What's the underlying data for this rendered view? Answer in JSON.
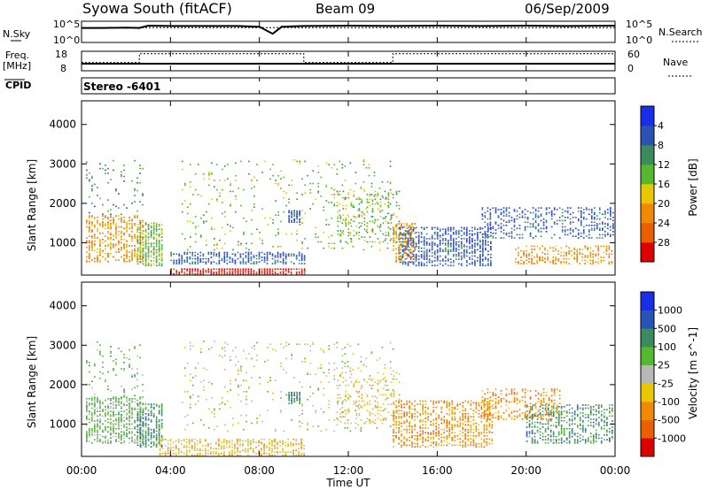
{
  "header": {
    "title": "Syowa South (fitACF)",
    "beam": "Beam 09",
    "date": "06/Sep/2009"
  },
  "top_panels": {
    "nsky": {
      "left_label": "N.Sky",
      "right_label": "N.Search",
      "left_top_tick": "10^5",
      "left_bottom_tick": "10^0",
      "right_top_tick": "10^5",
      "right_bottom_tick": "10^0"
    },
    "freq": {
      "left_label_line1": "Freq.",
      "left_label_line2": "[MHz]",
      "right_label": "Nave",
      "left_top_tick": "18",
      "left_bottom_tick": "8",
      "right_top_tick": "60",
      "right_bottom_tick": "0"
    },
    "cpid": {
      "label": "CPID",
      "value": "Stereo -6401"
    }
  },
  "panels": {
    "power": {
      "ylabel": "Slant Range [km]",
      "colorbar_label": "Power [dB]",
      "yticks": [
        "1000",
        "2000",
        "3000",
        "4000"
      ],
      "colorbar_ticks": [
        "4",
        "8",
        "12",
        "16",
        "20",
        "24",
        "28"
      ],
      "colorbar_colors": [
        "#1a2ee8",
        "#2a52b6",
        "#3d8a5e",
        "#56b830",
        "#e8c800",
        "#f08a00",
        "#e86000",
        "#dd0000"
      ]
    },
    "velocity": {
      "ylabel": "Slant Range [km]",
      "colorbar_label": "Velocity [m s^-1]",
      "yticks": [
        "1000",
        "2000",
        "3000",
        "4000"
      ],
      "colorbar_ticks": [
        "1000",
        "500",
        "100",
        "25",
        "-25",
        "-100",
        "-500",
        "-1000"
      ],
      "colorbar_colors": [
        "#1a2ee8",
        "#2a52b6",
        "#3d8a5e",
        "#56b830",
        "#b8b8b8",
        "#e8c800",
        "#f08a00",
        "#e86000",
        "#dd0000"
      ]
    }
  },
  "xaxis": {
    "label": "Time UT",
    "ticks": [
      "00:00",
      "04:00",
      "08:00",
      "12:00",
      "16:00",
      "20:00",
      "00:00"
    ]
  },
  "chart_data": [
    {
      "type": "line",
      "name": "nsky_nsearch",
      "x_range_hours": [
        0,
        24
      ],
      "series": [
        {
          "name": "N.Sky",
          "x": [
            0,
            1,
            2,
            2.6,
            3,
            4,
            6,
            7,
            8,
            8.6,
            9,
            10,
            12,
            14,
            16,
            18,
            20,
            22,
            24
          ],
          "y": [
            3.5,
            3.5,
            3.6,
            3.5,
            4.1,
            4.0,
            4.0,
            4.0,
            3.8,
            2.0,
            3.8,
            4.0,
            4.1,
            4.0,
            4.1,
            4.0,
            4.1,
            4.0,
            4.1
          ]
        },
        {
          "name": "N.Search",
          "x": [
            0,
            24
          ],
          "y": [
            3.6,
            3.6
          ]
        }
      ],
      "ylim": [
        0,
        5
      ]
    },
    {
      "type": "line",
      "name": "freq_nave",
      "x_range_hours": [
        0,
        24
      ],
      "series": [
        {
          "name": "Freq.",
          "x": [
            0,
            2.6,
            2.6,
            10,
            10,
            14,
            14,
            24
          ],
          "y": [
            11.5,
            11.5,
            11.5,
            11.5,
            11.5,
            11.5,
            11.5,
            11.5
          ]
        },
        {
          "name": "Nave",
          "x": [
            0,
            2.6,
            2.6,
            10,
            10,
            14,
            14,
            24
          ],
          "y": [
            25,
            25,
            55,
            55,
            25,
            25,
            55,
            55
          ]
        }
      ],
      "ylim": [
        8,
        18
      ]
    },
    {
      "type": "heatmap",
      "name": "power_rti",
      "x_range_hours": [
        0,
        24
      ],
      "ylim": [
        180,
        4600
      ],
      "zlim": [
        0,
        30
      ],
      "regions": [
        {
          "t0": 0.2,
          "t1": 2.8,
          "r0": 500,
          "r1": 1700,
          "z": 20,
          "density": 0.55
        },
        {
          "t0": 0.2,
          "t1": 2.8,
          "r0": 1700,
          "r1": 3100,
          "z": 10,
          "density": 0.1
        },
        {
          "t0": 2.5,
          "t1": 3.7,
          "r0": 400,
          "r1": 1500,
          "z": 14,
          "density": 0.7
        },
        {
          "t0": 4.0,
          "t1": 10.0,
          "r0": 190,
          "r1": 330,
          "z": 28,
          "density": 0.85
        },
        {
          "t0": 4.0,
          "t1": 10.0,
          "r0": 450,
          "r1": 750,
          "z": 5,
          "density": 0.55
        },
        {
          "t0": 4.5,
          "t1": 14.0,
          "r0": 800,
          "r1": 3100,
          "z": 12,
          "density": 0.08
        },
        {
          "t0": 9.3,
          "t1": 9.8,
          "r0": 1500,
          "r1": 1800,
          "z": 5,
          "density": 0.8
        },
        {
          "t0": 11.5,
          "t1": 14.3,
          "r0": 1000,
          "r1": 2300,
          "z": 14,
          "density": 0.25
        },
        {
          "t0": 14.0,
          "t1": 15.0,
          "r0": 500,
          "r1": 1500,
          "z": 20,
          "density": 0.6
        },
        {
          "t0": 14.3,
          "t1": 18.5,
          "r0": 400,
          "r1": 1400,
          "z": 5,
          "density": 0.55
        },
        {
          "t0": 18.0,
          "t1": 23.9,
          "r0": 1100,
          "r1": 1900,
          "z": 5,
          "density": 0.35
        },
        {
          "t0": 19.5,
          "t1": 23.9,
          "r0": 450,
          "r1": 900,
          "z": 20,
          "density": 0.45
        }
      ]
    },
    {
      "type": "heatmap",
      "name": "velocity_rti",
      "x_range_hours": [
        0,
        24
      ],
      "ylim": [
        180,
        4600
      ],
      "zlim": [
        -1000,
        1000
      ],
      "regions": [
        {
          "t0": 0.2,
          "t1": 2.8,
          "r0": 500,
          "r1": 1700,
          "z": 80,
          "density": 0.55
        },
        {
          "t0": 0.2,
          "t1": 2.8,
          "r0": 1700,
          "r1": 3100,
          "z": 30,
          "density": 0.1
        },
        {
          "t0": 2.5,
          "t1": 3.7,
          "r0": 400,
          "r1": 1500,
          "z": 120,
          "density": 0.65
        },
        {
          "t0": 3.5,
          "t1": 10.0,
          "r0": 190,
          "r1": 600,
          "z": -60,
          "density": 0.55
        },
        {
          "t0": 4.5,
          "t1": 14.0,
          "r0": 800,
          "r1": 3100,
          "z": 0,
          "density": 0.08
        },
        {
          "t0": 9.3,
          "t1": 9.8,
          "r0": 1500,
          "r1": 1800,
          "z": 100,
          "density": 0.7
        },
        {
          "t0": 11.5,
          "t1": 14.3,
          "r0": 1000,
          "r1": 2300,
          "z": -60,
          "density": 0.2
        },
        {
          "t0": 14.0,
          "t1": 18.5,
          "r0": 400,
          "r1": 1600,
          "z": -120,
          "density": 0.5
        },
        {
          "t0": 18.0,
          "t1": 21.5,
          "r0": 1100,
          "r1": 1900,
          "z": -300,
          "density": 0.4
        },
        {
          "t0": 20.0,
          "t1": 23.9,
          "r0": 500,
          "r1": 1500,
          "z": 150,
          "density": 0.45
        }
      ]
    }
  ]
}
